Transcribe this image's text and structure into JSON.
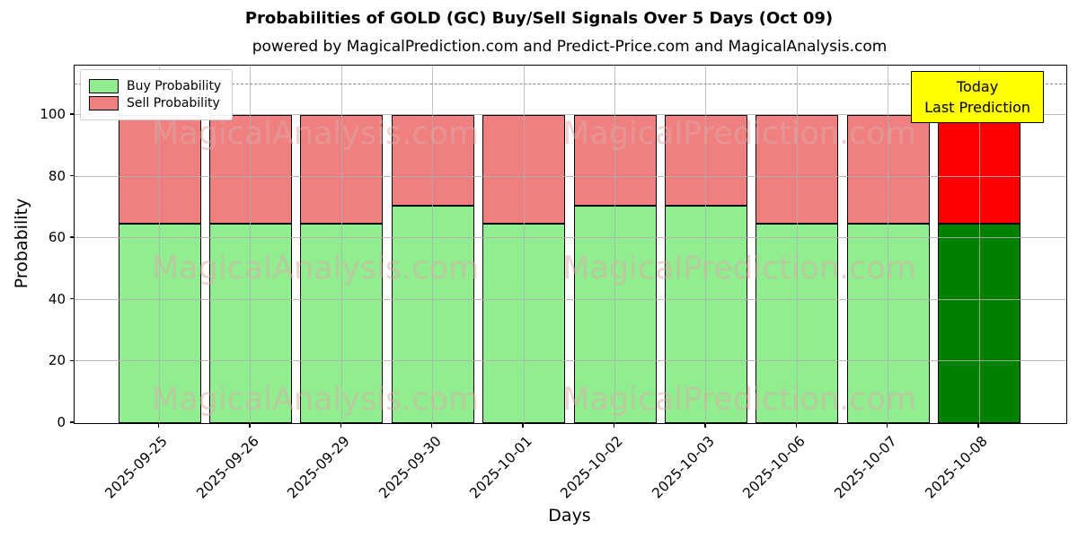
{
  "title": "Probabilities of GOLD (GC) Buy/Sell Signals Over 5 Days (Oct 09)",
  "subtitle": "powered by MagicalPrediction.com and Predict-Price.com and MagicalAnalysis.com",
  "annotation": {
    "line1": "Today",
    "line2": "Last Prediction",
    "bg_color": "#ffff00"
  },
  "watermarks": [
    "MagicalAnalysis.com",
    "MagicalPrediction.com"
  ],
  "chart_data": {
    "type": "bar",
    "stacked": true,
    "title": "Probabilities of GOLD (GC) Buy/Sell Signals Over 5 Days (Oct 09)",
    "xlabel": "Days",
    "ylabel": "Probability",
    "ylim": [
      0,
      116
    ],
    "yticks": [
      0,
      20,
      40,
      60,
      80,
      100
    ],
    "grid": true,
    "dashed_line_y": 110,
    "legend_position": "upper left",
    "categories": [
      "2025-09-25",
      "2025-09-26",
      "2025-09-29",
      "2025-09-30",
      "2025-10-01",
      "2025-10-02",
      "2025-10-03",
      "2025-10-06",
      "2025-10-07",
      "2025-10-08"
    ],
    "series": [
      {
        "name": "Buy Probability",
        "color": "#90ee90",
        "today_color": "#008000",
        "values": [
          64.5,
          64.5,
          64.5,
          70.5,
          64.5,
          70.5,
          70.5,
          64.5,
          64.5,
          64.5
        ]
      },
      {
        "name": "Sell Probability",
        "color": "#f08080",
        "today_color": "#ff0000",
        "values": [
          35.5,
          35.5,
          35.5,
          29.5,
          35.5,
          29.5,
          29.5,
          35.5,
          35.5,
          35.5
        ]
      }
    ]
  },
  "colors": {
    "bar_edge": "#000000",
    "grid": "#b0b0b0",
    "dashed_line": "#8a8a8a",
    "watermark": "rgba(222,168,168,0.5)"
  }
}
